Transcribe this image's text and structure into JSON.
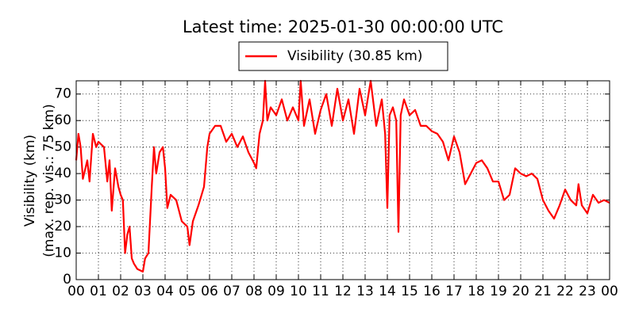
{
  "chart_data": {
    "type": "line",
    "title": "Latest time: 2025-01-30 00:00:00 UTC",
    "ylabel": [
      "Visibility (km)",
      "(max. rep. vis.: 75 km)"
    ],
    "legend": "top",
    "grid": true,
    "xlim": [
      0,
      24
    ],
    "ylim": [
      0,
      75
    ],
    "yticks": [
      0,
      10,
      20,
      30,
      40,
      50,
      60,
      70
    ],
    "xticks": [
      {
        "value": 0,
        "label": "00"
      },
      {
        "value": 1,
        "label": "01"
      },
      {
        "value": 2,
        "label": "02"
      },
      {
        "value": 3,
        "label": "03"
      },
      {
        "value": 4,
        "label": "04"
      },
      {
        "value": 5,
        "label": "05"
      },
      {
        "value": 6,
        "label": "06"
      },
      {
        "value": 7,
        "label": "07"
      },
      {
        "value": 8,
        "label": "08"
      },
      {
        "value": 9,
        "label": "09"
      },
      {
        "value": 10,
        "label": "10"
      },
      {
        "value": 11,
        "label": "11"
      },
      {
        "value": 12,
        "label": "12"
      },
      {
        "value": 13,
        "label": "13"
      },
      {
        "value": 14,
        "label": "14"
      },
      {
        "value": 15,
        "label": "15"
      },
      {
        "value": 16,
        "label": "16"
      },
      {
        "value": 17,
        "label": "17"
      },
      {
        "value": 18,
        "label": "18"
      },
      {
        "value": 19,
        "label": "19"
      },
      {
        "value": 20,
        "label": "20"
      },
      {
        "value": 21,
        "label": "21"
      },
      {
        "value": 22,
        "label": "22"
      },
      {
        "value": 23,
        "label": "23"
      },
      {
        "value": 24,
        "label": "00"
      }
    ],
    "x": [
      0,
      0.1,
      0.2,
      0.3,
      0.5,
      0.6,
      0.75,
      0.9,
      1,
      1.25,
      1.4,
      1.5,
      1.6,
      1.75,
      1.9,
      2,
      2.1,
      2.2,
      2.3,
      2.4,
      2.5,
      2.6,
      2.75,
      3,
      3.1,
      3.25,
      3.4,
      3.5,
      3.6,
      3.75,
      3.9,
      4,
      4.1,
      4.25,
      4.5,
      4.75,
      5,
      5.1,
      5.25,
      5.5,
      5.75,
      5.9,
      6,
      6.25,
      6.5,
      6.75,
      7,
      7.25,
      7.5,
      7.75,
      8,
      8.1,
      8.25,
      8.4,
      8.5,
      8.6,
      8.75,
      9,
      9.25,
      9.5,
      9.75,
      10,
      10.1,
      10.25,
      10.5,
      10.75,
      11,
      11.25,
      11.5,
      11.75,
      12,
      12.25,
      12.5,
      12.75,
      13,
      13.25,
      13.5,
      13.75,
      13.9,
      14,
      14.1,
      14.25,
      14.4,
      14.5,
      14.6,
      14.75,
      15,
      15.25,
      15.5,
      15.75,
      16,
      16.25,
      16.5,
      16.75,
      17,
      17.25,
      17.5,
      17.75,
      18,
      18.25,
      18.5,
      18.75,
      19,
      19.25,
      19.5,
      19.75,
      20,
      20.25,
      20.5,
      20.75,
      21,
      21.25,
      21.5,
      21.75,
      22,
      22.25,
      22.5,
      22.6,
      22.75,
      23,
      23.25,
      23.5,
      23.75,
      24
    ],
    "series": [
      {
        "name": "Visibility (30.85 km)",
        "color": "#ff0000",
        "values": [
          45,
          55,
          50,
          38,
          45,
          37,
          55,
          50,
          52,
          50,
          37,
          45,
          26,
          42,
          35,
          32,
          30,
          10,
          17,
          20,
          8,
          6,
          4,
          3,
          8,
          10,
          35,
          50,
          40,
          48,
          50,
          42,
          27,
          32,
          30,
          22,
          20,
          13,
          22,
          28,
          35,
          50,
          55,
          58,
          58,
          52,
          55,
          50,
          54,
          48,
          44,
          42,
          55,
          60,
          75,
          60,
          65,
          62,
          68,
          60,
          65,
          60,
          75,
          58,
          68,
          55,
          64,
          70,
          58,
          72,
          60,
          68,
          55,
          72,
          62,
          75,
          58,
          68,
          55,
          27,
          62,
          65,
          60,
          18,
          62,
          68,
          62,
          64,
          58,
          58,
          56,
          55,
          52,
          45,
          54,
          48,
          36,
          40,
          44,
          45,
          42,
          37,
          37,
          30,
          32,
          42,
          40,
          39,
          40,
          38,
          30,
          26,
          23,
          28,
          34,
          30,
          28,
          36,
          28,
          25,
          32,
          29,
          30,
          29
        ]
      }
    ]
  }
}
